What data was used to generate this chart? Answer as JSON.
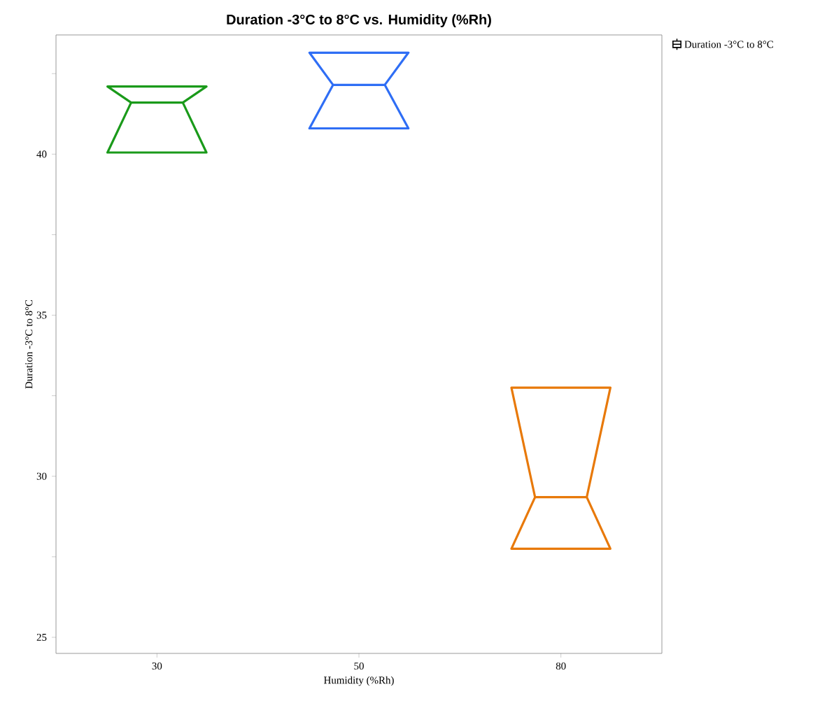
{
  "chart_data": {
    "type": "box",
    "title": "Duration -3°C to 8°C vs. Humidity (%Rh)",
    "xlabel": "Humidity (%Rh)",
    "ylabel": "Duration -3°C to 8°C",
    "categories": [
      "30",
      "50",
      "80"
    ],
    "series": [
      {
        "name": "Duration -3°C to 8°C",
        "colors": [
          "#1a9a1a",
          "#2f6ef5",
          "#e8790a"
        ],
        "boxes": [
          {
            "low": 40.05,
            "q1": 40.05,
            "median": 41.6,
            "q3": 42.1,
            "high": 42.1
          },
          {
            "low": 40.8,
            "q1": 40.8,
            "median": 42.15,
            "q3": 43.15,
            "high": 43.15
          },
          {
            "low": 27.75,
            "q1": 27.75,
            "median": 29.35,
            "q3": 32.75,
            "high": 32.75
          }
        ]
      }
    ],
    "ylim": [
      24.5,
      43.7
    ],
    "yticks": [
      25,
      {
        "value": 27.5,
        "label": null
      },
      30,
      {
        "value": 32.5,
        "label": null
      },
      35,
      {
        "value": 37.5,
        "label": null
      },
      40,
      {
        "value": 42.5,
        "label": null
      }
    ],
    "grid": false,
    "legend": "top right"
  }
}
